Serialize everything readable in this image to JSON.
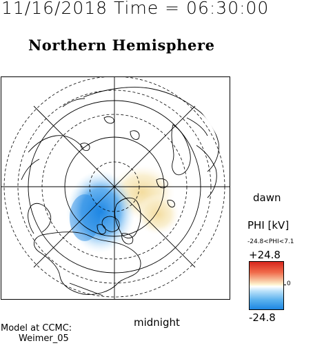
{
  "header": {
    "date_time": "11/16/2018 Time = 06:30:00",
    "subtitle": "Northern Hemisphere"
  },
  "map": {
    "dawn_label": "dawn",
    "midnight_label": "midnight",
    "projection": "polar, north pole centered",
    "features": [
      "coastlines",
      "latitude circles",
      "longitude spokes",
      "electric potential contour shading"
    ]
  },
  "colorbar": {
    "title": "PHI [kV]",
    "range_text": "-24.8<PHI<7.1",
    "max_label": "+24.8",
    "min_label": "-24.8",
    "zero_label": "0",
    "colors": {
      "positive": "#d7261e",
      "neutral": "#ffffff",
      "negative": "#1d86e3"
    }
  },
  "footer": {
    "model_label": "Model at CCMC:",
    "model_name": "Weimer_05"
  }
}
